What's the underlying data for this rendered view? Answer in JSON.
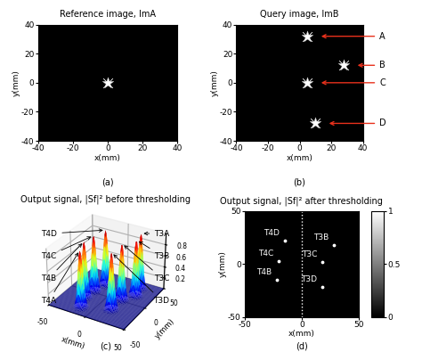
{
  "chart_data": [
    {
      "type": "image",
      "title": "Reference image, ImA",
      "x_label": "x(mm)",
      "y_label": "y(mm)",
      "xlim": [
        -40,
        40
      ],
      "ylim": [
        -40,
        40
      ],
      "xticks": [
        -40,
        -20,
        0,
        20,
        40
      ],
      "yticks": [
        -40,
        -20,
        0,
        20,
        40
      ],
      "caption": "(a)",
      "objects": [
        {
          "x": 0,
          "y": 0
        }
      ]
    },
    {
      "type": "image",
      "title": "Query image, ImB",
      "x_label": "x(mm)",
      "y_label": "y(mm)",
      "xlim": [
        -40,
        40
      ],
      "ylim": [
        -40,
        40
      ],
      "xticks": [
        -40,
        -20,
        0,
        20,
        40
      ],
      "yticks": [
        -40,
        -20,
        0,
        20,
        40
      ],
      "caption": "(b)",
      "color": "#e8311c",
      "objects": [
        {
          "name": "A",
          "x": 5,
          "y": 32
        },
        {
          "name": "B",
          "x": 28,
          "y": 12
        },
        {
          "name": "C",
          "x": 5,
          "y": 0
        },
        {
          "name": "D",
          "x": 10,
          "y": -28
        }
      ]
    },
    {
      "type": "surface",
      "title": "Output signal, |Sf|² before thresholding",
      "x_label": "x(mm)",
      "y_label": "y(mm)",
      "xlim": [
        -50,
        50
      ],
      "ylim": [
        -50,
        50
      ],
      "xticks": [
        -50,
        0,
        50
      ],
      "yticks": [
        -50,
        0,
        50
      ],
      "zlim": [
        0,
        1
      ],
      "zticks": [
        0.2,
        0.4,
        0.6,
        0.8
      ],
      "caption": "(c)",
      "peaks": [
        {
          "name": "T4D",
          "x": -15,
          "y": 22,
          "z": 1
        },
        {
          "name": "T3A",
          "x": 25,
          "y": 35,
          "z": 1
        },
        {
          "name": "T3B",
          "x": 28,
          "y": 18,
          "z": 1
        },
        {
          "name": "T4C",
          "x": -20,
          "y": 3,
          "z": 1
        },
        {
          "name": "T3C",
          "x": 18,
          "y": 2,
          "z": 1
        },
        {
          "name": "T4B",
          "x": -22,
          "y": -15,
          "z": 1
        },
        {
          "name": "T3D",
          "x": 18,
          "y": -22,
          "z": 1
        },
        {
          "name": "T4A",
          "x": -15,
          "y": -35,
          "z": 1
        }
      ]
    },
    {
      "type": "image",
      "title": "Output signal, |Sf|² after thresholding",
      "x_label": "x(mm)",
      "y_label": "y(mm)",
      "xlim": [
        -50,
        50
      ],
      "ylim": [
        -50,
        50
      ],
      "xticks": [
        -50,
        0,
        50
      ],
      "yticks": [
        -50,
        0,
        50
      ],
      "colorbar_range": [
        0,
        1
      ],
      "colorbar_ticks": [
        0,
        0.5,
        1
      ],
      "divider_x": 0,
      "caption": "(d)",
      "points": [
        {
          "name": "T4D",
          "x": -15,
          "y": 22
        },
        {
          "name": "T3B",
          "x": 28,
          "y": 18
        },
        {
          "name": "T4C",
          "x": -20,
          "y": 3
        },
        {
          "name": "T3C",
          "x": 18,
          "y": 2
        },
        {
          "name": "T4B",
          "x": -22,
          "y": -15
        },
        {
          "name": "T3D",
          "x": 18,
          "y": -22
        }
      ]
    }
  ]
}
